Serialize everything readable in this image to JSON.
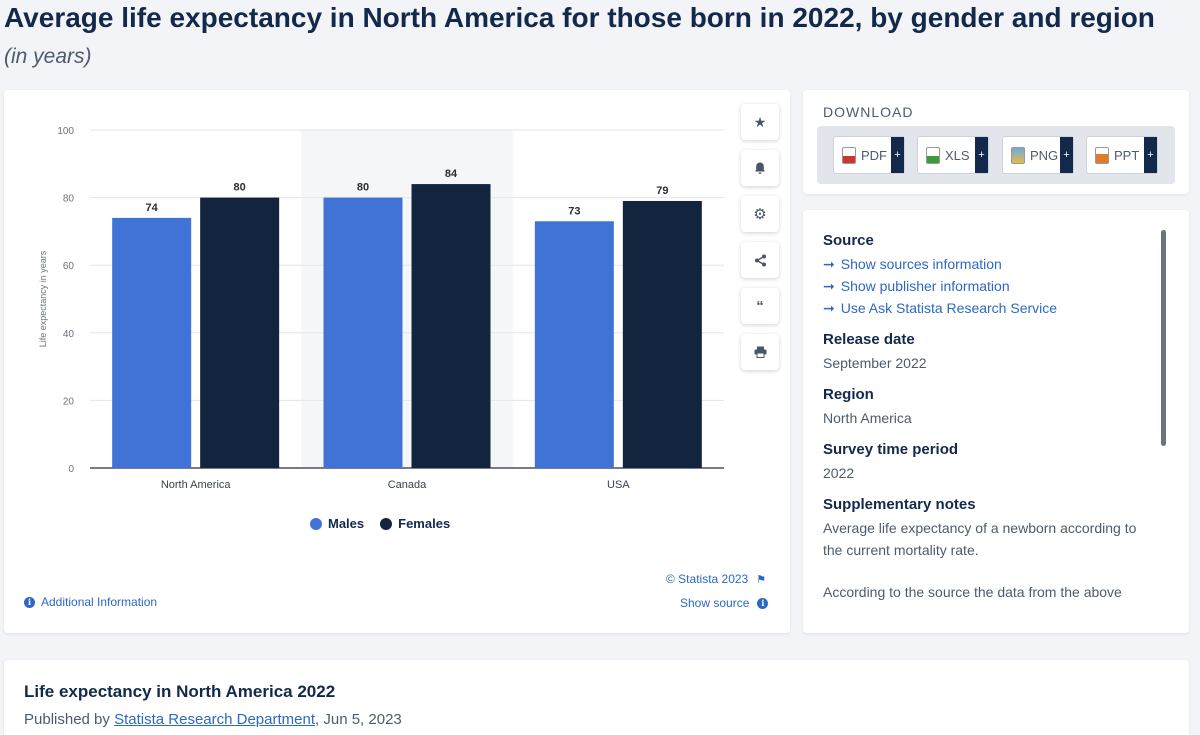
{
  "page": {
    "title": "Average life expectancy in North America for those born in 2022, by gender and region",
    "subtitle": "(in years)"
  },
  "chart_data": {
    "type": "bar",
    "categories": [
      "North America",
      "Canada",
      "USA"
    ],
    "series": [
      {
        "name": "Males",
        "values": [
          74,
          80,
          73
        ],
        "color": "#4173d6"
      },
      {
        "name": "Females",
        "values": [
          80,
          84,
          79
        ],
        "color": "#13243e"
      }
    ],
    "ylabel": "Life expectancy in years",
    "ylim": [
      0,
      100
    ],
    "yticks": [
      0,
      20,
      40,
      60,
      80,
      100
    ],
    "grid": true,
    "legend": "bottom-center",
    "highlighted_category": "Canada"
  },
  "legend": {
    "males": "Males",
    "females": "Females"
  },
  "chart_footer": {
    "copyright": "© Statista 2023",
    "show_source": "Show source",
    "additional_info": "Additional Information"
  },
  "download": {
    "title": "DOWNLOAD",
    "buttons": [
      "PDF",
      "XLS",
      "PNG",
      "PPT"
    ],
    "plus": "+"
  },
  "info": {
    "source_heading": "Source",
    "source_links": [
      "Show sources information",
      "Show publisher information",
      "Use Ask Statista Research Service"
    ],
    "release_heading": "Release date",
    "release_value": "September 2022",
    "region_heading": "Region",
    "region_value": "North America",
    "survey_heading": "Survey time period",
    "survey_value": "2022",
    "notes_heading": "Supplementary notes",
    "notes_value_1": "Average life expectancy of a newborn according to the current mortality rate.",
    "notes_value_2": "According to the source the data from the above"
  },
  "footer": {
    "title": "Life expectancy in North America 2022",
    "published_by": "Published by",
    "publisher": "Statista Research Department",
    "date": ", Jun 5, 2023"
  },
  "colors": {
    "accent": "#2d68c4",
    "navy": "#13294b"
  },
  "icons": [
    "star-icon",
    "bell-icon",
    "gear-icon",
    "share-icon",
    "quote-icon",
    "print-icon",
    "flag-icon",
    "info-icon",
    "arrow-right-icon"
  ]
}
